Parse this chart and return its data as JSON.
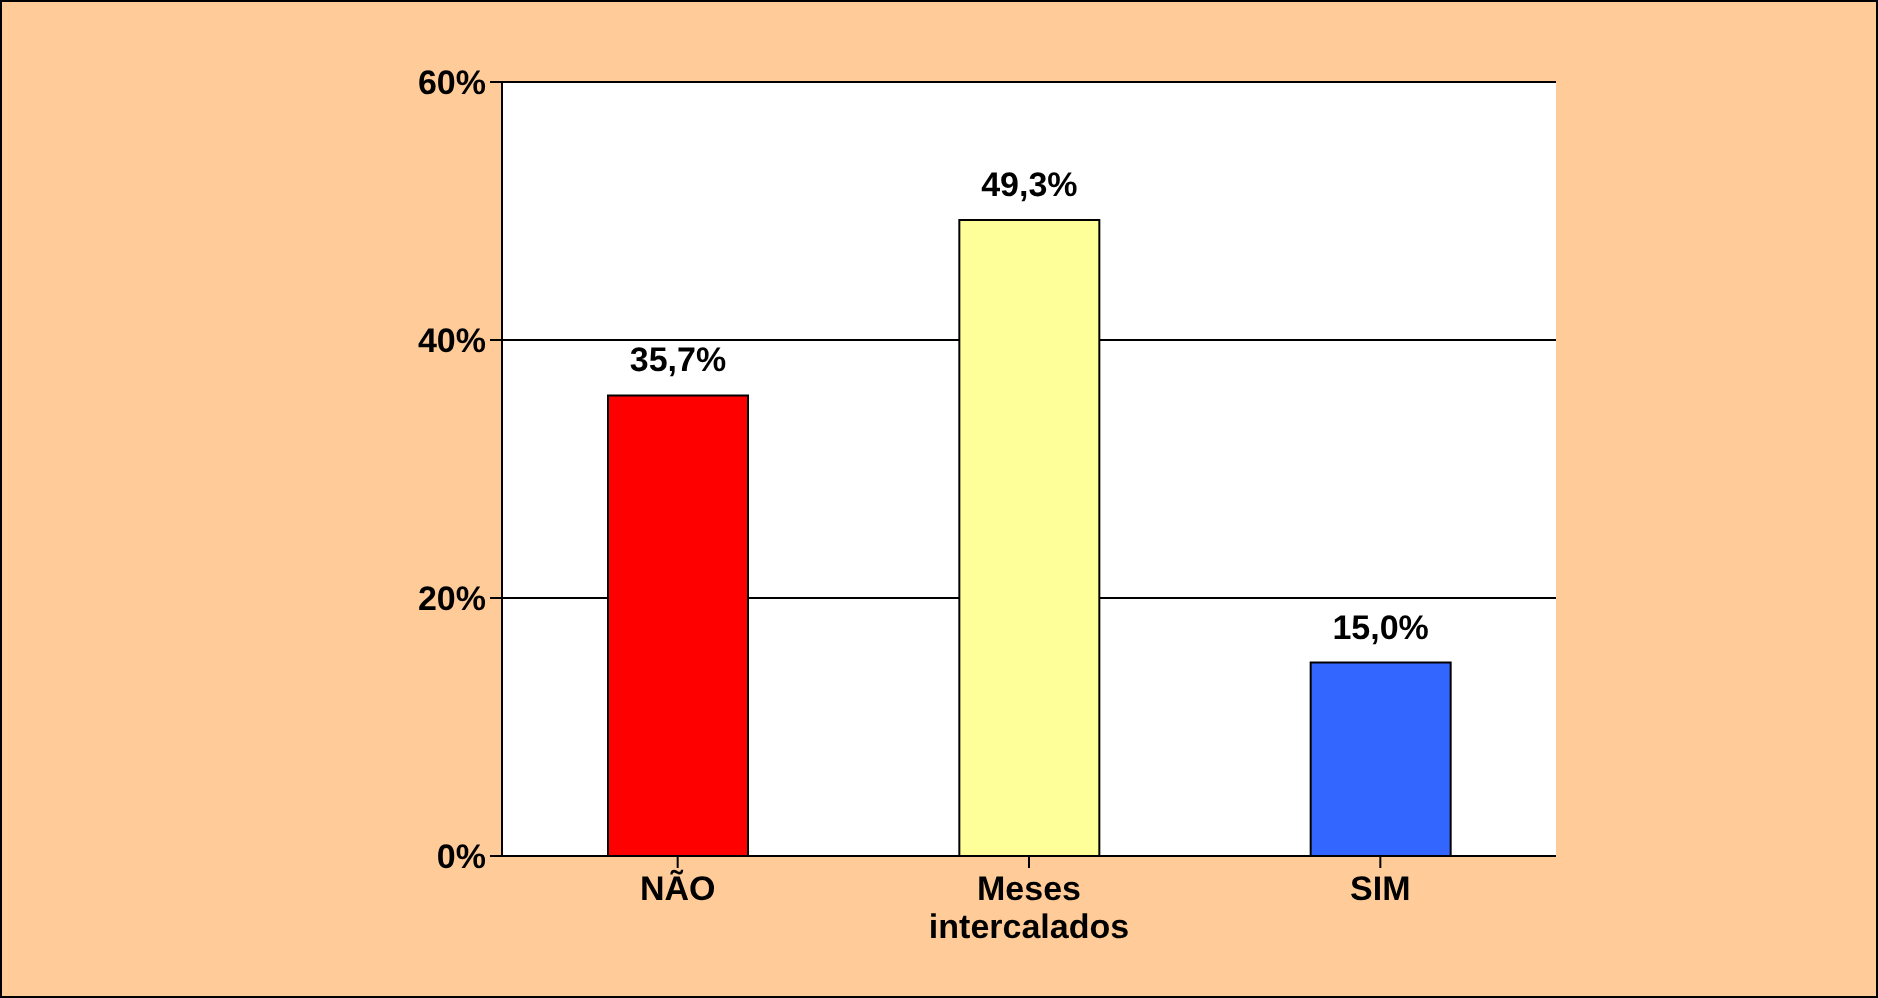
{
  "chart_data": {
    "type": "bar",
    "categories": [
      "NÃO",
      "Meses intercalados",
      "SIM"
    ],
    "values": [
      35.7,
      49.3,
      15.0
    ],
    "colors": [
      "#ff0000",
      "#ffff99",
      "#3366ff"
    ],
    "value_labels": [
      "35,7%",
      "49,3%",
      "15,0%"
    ],
    "ylim": [
      0,
      60
    ],
    "yticks": [
      {
        "value": 0,
        "label": "0%"
      },
      {
        "value": 20,
        "label": "20%"
      },
      {
        "value": 40,
        "label": "40%"
      },
      {
        "value": 60,
        "label": "60%"
      }
    ],
    "grid": "y"
  }
}
